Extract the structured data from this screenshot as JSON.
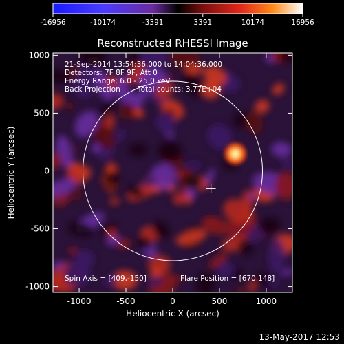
{
  "colorbar": {
    "ticks": [
      "-16956",
      "-10174",
      "-3391",
      "3391",
      "10174",
      "16956"
    ],
    "range": [
      -16956,
      16956
    ]
  },
  "chart_data": {
    "type": "heatmap",
    "title": "Reconstructed RHESSI Image",
    "xlabel": "Heliocentric X (arcsec)",
    "ylabel": "Heliocentric Y (arcsec)",
    "xlim": [
      -1280,
      1280
    ],
    "ylim": [
      -1050,
      1020
    ],
    "xticks": [
      "-1000",
      "-500",
      "0",
      "500",
      "1000"
    ],
    "yticks": [
      "1000",
      "500",
      "0",
      "-500",
      "-1000"
    ],
    "xtick_values": [
      -1000,
      -500,
      0,
      500,
      1000
    ],
    "ytick_values": [
      1000,
      500,
      0,
      -500,
      -1000
    ],
    "annotations": {
      "time": "21-Sep-2014 13:54:36.000 to 14:04:36.000",
      "detectors": "Detectors: 7F 8F 9F, Att 0",
      "energy": "Energy Range: 6.0 - 25.0 keV",
      "method": "Back Projection",
      "counts": "Total counts: 3.77E+04",
      "spin_axis": "Spin Axis = [409,-150]",
      "flare_position": "Flare Position = [670,148]"
    },
    "spin_axis": [
      409,
      -150
    ],
    "flare_position": [
      670,
      148
    ],
    "solar_radius": 960,
    "peak_value": 16956
  },
  "footer": {
    "timestamp": "13-May-2017 12:53"
  }
}
